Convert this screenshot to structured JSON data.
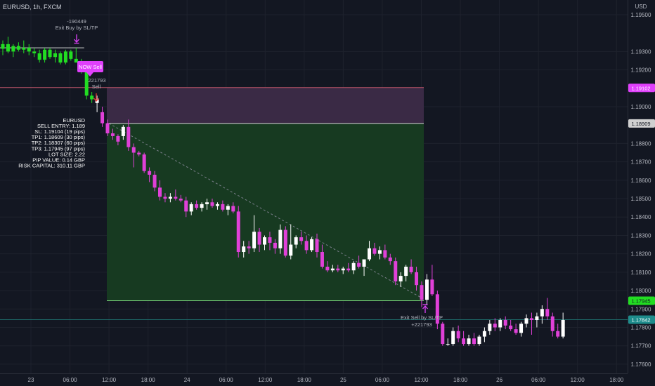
{
  "header": {
    "symbol_title": "EURUSD, 1h, FXCM",
    "currency": "USD"
  },
  "colors": {
    "background": "#131722",
    "grid": "#1e222d",
    "up": "#ffffff",
    "down": "#e040d8",
    "early_up": "#22dd22",
    "sl_zone": "#3a2a45",
    "tp_zone": "#173a21",
    "sl_line": "#c0566b",
    "entry_line": "#d8d8d8",
    "tp_line": "#7bd67b",
    "last_line": "#1e6b6b",
    "magenta": "#e040fb"
  },
  "chart_data": {
    "type": "candlestick",
    "symbol": "EURUSD",
    "timeframe": "1h",
    "source": "FXCM",
    "ylim": [
      1.1755,
      1.1958
    ],
    "y_ticks": [
      "1.19500",
      "1.19300",
      "1.19200",
      "1.19000",
      "1.18800",
      "1.18700",
      "1.18600",
      "1.18500",
      "1.18400",
      "1.18300",
      "1.18200",
      "1.18100",
      "1.18000",
      "1.17900",
      "1.17800",
      "1.17700",
      "1.17600"
    ],
    "x_ticks": [
      "23",
      "06:00",
      "12:00",
      "18:00",
      "24",
      "06:00",
      "12:00",
      "18:00",
      "25",
      "06:00",
      "12:00",
      "18:00",
      "26",
      "06:00",
      "12:00",
      "18:00"
    ],
    "candles": [
      {
        "o": 1.19315,
        "h": 1.1936,
        "l": 1.1928,
        "c": 1.1934,
        "g": 1
      },
      {
        "o": 1.1934,
        "h": 1.1938,
        "l": 1.1929,
        "c": 1.193,
        "g": 1
      },
      {
        "o": 1.193,
        "h": 1.1934,
        "l": 1.1927,
        "c": 1.1933,
        "g": 1
      },
      {
        "o": 1.1933,
        "h": 1.1935,
        "l": 1.193,
        "c": 1.1931,
        "g": 1
      },
      {
        "o": 1.1931,
        "h": 1.1936,
        "l": 1.1929,
        "c": 1.1932,
        "g": 1
      },
      {
        "o": 1.1932,
        "h": 1.1934,
        "l": 1.1928,
        "c": 1.193,
        "g": 1
      },
      {
        "o": 1.193,
        "h": 1.1932,
        "l": 1.1927,
        "c": 1.1929,
        "g": 1
      },
      {
        "o": 1.1929,
        "h": 1.1931,
        "l": 1.1924,
        "c": 1.19255,
        "g": 1
      },
      {
        "o": 1.19255,
        "h": 1.1932,
        "l": 1.1924,
        "c": 1.1931,
        "g": 1
      },
      {
        "o": 1.1931,
        "h": 1.1932,
        "l": 1.1926,
        "c": 1.1927,
        "g": 1
      },
      {
        "o": 1.1927,
        "h": 1.1931,
        "l": 1.1924,
        "c": 1.1929,
        "g": 1
      },
      {
        "o": 1.1929,
        "h": 1.193,
        "l": 1.1923,
        "c": 1.1924,
        "g": 1
      },
      {
        "o": 1.1924,
        "h": 1.1931,
        "l": 1.1923,
        "c": 1.193,
        "g": 1
      },
      {
        "o": 1.193,
        "h": 1.1931,
        "l": 1.1925,
        "c": 1.1926,
        "g": 1
      },
      {
        "o": 1.1926,
        "h": 1.1932,
        "l": 1.1924,
        "c": 1.1924,
        "g": 1
      },
      {
        "o": 1.1923,
        "h": 1.1926,
        "l": 1.1918,
        "c": 1.192,
        "g": 1
      },
      {
        "o": 1.192,
        "h": 1.1922,
        "l": 1.1904,
        "c": 1.1906,
        "g": 1
      },
      {
        "o": 1.1906,
        "h": 1.1908,
        "l": 1.1902,
        "c": 1.1904,
        "g": 1
      },
      {
        "o": 1.1902,
        "h": 1.1906,
        "l": 1.1897,
        "c": 1.1904
      },
      {
        "o": 1.1897,
        "h": 1.19,
        "l": 1.1889,
        "c": 1.1891
      },
      {
        "o": 1.1891,
        "h": 1.1893,
        "l": 1.1884,
        "c": 1.18855
      },
      {
        "o": 1.18855,
        "h": 1.1888,
        "l": 1.1882,
        "c": 1.1884
      },
      {
        "o": 1.1884,
        "h": 1.1885,
        "l": 1.1879,
        "c": 1.1881
      },
      {
        "o": 1.1884,
        "h": 1.189,
        "l": 1.1882,
        "c": 1.1889
      },
      {
        "o": 1.1889,
        "h": 1.1893,
        "l": 1.1876,
        "c": 1.1878
      },
      {
        "o": 1.1878,
        "h": 1.188,
        "l": 1.1867,
        "c": 1.1875
      },
      {
        "o": 1.1875,
        "h": 1.1876,
        "l": 1.1873,
        "c": 1.1874
      },
      {
        "o": 1.1874,
        "h": 1.1875,
        "l": 1.1864,
        "c": 1.1865
      },
      {
        "o": 1.1865,
        "h": 1.1867,
        "l": 1.1859,
        "c": 1.1863
      },
      {
        "o": 1.1863,
        "h": 1.1865,
        "l": 1.1854,
        "c": 1.1856
      },
      {
        "o": 1.1856,
        "h": 1.186,
        "l": 1.1849,
        "c": 1.1851
      },
      {
        "o": 1.1851,
        "h": 1.1853,
        "l": 1.1848,
        "c": 1.185
      },
      {
        "o": 1.185,
        "h": 1.1853,
        "l": 1.1848,
        "c": 1.1851
      },
      {
        "o": 1.1851,
        "h": 1.1855,
        "l": 1.1849,
        "c": 1.185
      },
      {
        "o": 1.185,
        "h": 1.1852,
        "l": 1.1848,
        "c": 1.1849
      },
      {
        "o": 1.1849,
        "h": 1.1851,
        "l": 1.184,
        "c": 1.1843
      },
      {
        "o": 1.1843,
        "h": 1.1848,
        "l": 1.1841,
        "c": 1.1847
      },
      {
        "o": 1.1847,
        "h": 1.1849,
        "l": 1.1844,
        "c": 1.1845
      },
      {
        "o": 1.1845,
        "h": 1.1848,
        "l": 1.1843,
        "c": 1.1847
      },
      {
        "o": 1.1847,
        "h": 1.185,
        "l": 1.1844,
        "c": 1.1848
      },
      {
        "o": 1.1848,
        "h": 1.185,
        "l": 1.1845,
        "c": 1.1846
      },
      {
        "o": 1.1846,
        "h": 1.1848,
        "l": 1.1844,
        "c": 1.1847
      },
      {
        "o": 1.1847,
        "h": 1.1849,
        "l": 1.1843,
        "c": 1.1844
      },
      {
        "o": 1.1844,
        "h": 1.1847,
        "l": 1.1841,
        "c": 1.1846
      },
      {
        "o": 1.1846,
        "h": 1.1848,
        "l": 1.1842,
        "c": 1.1843
      },
      {
        "o": 1.1843,
        "h": 1.1846,
        "l": 1.1818,
        "c": 1.1821
      },
      {
        "o": 1.1821,
        "h": 1.1827,
        "l": 1.1818,
        "c": 1.1824
      },
      {
        "o": 1.1824,
        "h": 1.1827,
        "l": 1.182,
        "c": 1.1823
      },
      {
        "o": 1.1823,
        "h": 1.1841,
        "l": 1.1821,
        "c": 1.1832
      },
      {
        "o": 1.1832,
        "h": 1.1834,
        "l": 1.1821,
        "c": 1.1825
      },
      {
        "o": 1.1825,
        "h": 1.183,
        "l": 1.1822,
        "c": 1.1829
      },
      {
        "o": 1.1829,
        "h": 1.1832,
        "l": 1.1822,
        "c": 1.1826
      },
      {
        "o": 1.1826,
        "h": 1.1828,
        "l": 1.182,
        "c": 1.1823
      },
      {
        "o": 1.1823,
        "h": 1.1836,
        "l": 1.182,
        "c": 1.1833
      },
      {
        "o": 1.1833,
        "h": 1.1835,
        "l": 1.1818,
        "c": 1.1819
      },
      {
        "o": 1.1819,
        "h": 1.1836,
        "l": 1.1817,
        "c": 1.1825
      },
      {
        "o": 1.1825,
        "h": 1.183,
        "l": 1.1823,
        "c": 1.1829
      },
      {
        "o": 1.1829,
        "h": 1.1832,
        "l": 1.1825,
        "c": 1.1827
      },
      {
        "o": 1.1827,
        "h": 1.183,
        "l": 1.182,
        "c": 1.1822
      },
      {
        "o": 1.1822,
        "h": 1.1829,
        "l": 1.1821,
        "c": 1.1828
      },
      {
        "o": 1.1828,
        "h": 1.1831,
        "l": 1.1818,
        "c": 1.1821
      },
      {
        "o": 1.1821,
        "h": 1.1825,
        "l": 1.1812,
        "c": 1.1813
      },
      {
        "o": 1.1813,
        "h": 1.1816,
        "l": 1.181,
        "c": 1.1811
      },
      {
        "o": 1.1811,
        "h": 1.1814,
        "l": 1.181,
        "c": 1.1812
      },
      {
        "o": 1.1812,
        "h": 1.1814,
        "l": 1.181,
        "c": 1.1811
      },
      {
        "o": 1.1811,
        "h": 1.1813,
        "l": 1.1809,
        "c": 1.1812
      },
      {
        "o": 1.1812,
        "h": 1.1815,
        "l": 1.181,
        "c": 1.1811
      },
      {
        "o": 1.1811,
        "h": 1.1816,
        "l": 1.1809,
        "c": 1.1815
      },
      {
        "o": 1.1815,
        "h": 1.1819,
        "l": 1.1812,
        "c": 1.1813
      },
      {
        "o": 1.1813,
        "h": 1.1817,
        "l": 1.1808,
        "c": 1.1817
      },
      {
        "o": 1.1817,
        "h": 1.1827,
        "l": 1.1816,
        "c": 1.1823
      },
      {
        "o": 1.1823,
        "h": 1.1826,
        "l": 1.1819,
        "c": 1.182
      },
      {
        "o": 1.182,
        "h": 1.1824,
        "l": 1.1817,
        "c": 1.1822
      },
      {
        "o": 1.1822,
        "h": 1.1825,
        "l": 1.1817,
        "c": 1.1818
      },
      {
        "o": 1.1818,
        "h": 1.182,
        "l": 1.1814,
        "c": 1.1816
      },
      {
        "o": 1.1816,
        "h": 1.1818,
        "l": 1.1803,
        "c": 1.1805
      },
      {
        "o": 1.1805,
        "h": 1.181,
        "l": 1.1802,
        "c": 1.1808
      },
      {
        "o": 1.1808,
        "h": 1.1814,
        "l": 1.1805,
        "c": 1.1813
      },
      {
        "o": 1.1813,
        "h": 1.1817,
        "l": 1.1809,
        "c": 1.181
      },
      {
        "o": 1.181,
        "h": 1.1813,
        "l": 1.18,
        "c": 1.1803
      },
      {
        "o": 1.1803,
        "h": 1.1805,
        "l": 1.1791,
        "c": 1.1795
      },
      {
        "o": 1.1795,
        "h": 1.1809,
        "l": 1.1792,
        "c": 1.1806
      },
      {
        "o": 1.1806,
        "h": 1.1814,
        "l": 1.1797,
        "c": 1.1798
      },
      {
        "o": 1.1798,
        "h": 1.18,
        "l": 1.1779,
        "c": 1.1782
      },
      {
        "o": 1.1782,
        "h": 1.1783,
        "l": 1.177,
        "c": 1.1771
      },
      {
        "o": 1.1771,
        "h": 1.1774,
        "l": 1.177,
        "c": 1.1771
      },
      {
        "o": 1.1771,
        "h": 1.178,
        "l": 1.177,
        "c": 1.1778
      },
      {
        "o": 1.1778,
        "h": 1.1781,
        "l": 1.1772,
        "c": 1.1774
      },
      {
        "o": 1.1774,
        "h": 1.1778,
        "l": 1.177,
        "c": 1.1771
      },
      {
        "o": 1.1771,
        "h": 1.1776,
        "l": 1.177,
        "c": 1.1774
      },
      {
        "o": 1.1774,
        "h": 1.1777,
        "l": 1.177,
        "c": 1.1771
      },
      {
        "o": 1.1771,
        "h": 1.1776,
        "l": 1.177,
        "c": 1.1775
      },
      {
        "o": 1.1775,
        "h": 1.178,
        "l": 1.1772,
        "c": 1.1778
      },
      {
        "o": 1.1778,
        "h": 1.1784,
        "l": 1.1776,
        "c": 1.1782
      },
      {
        "o": 1.1782,
        "h": 1.1785,
        "l": 1.1778,
        "c": 1.178
      },
      {
        "o": 1.178,
        "h": 1.1785,
        "l": 1.1778,
        "c": 1.1784
      },
      {
        "o": 1.1784,
        "h": 1.1786,
        "l": 1.1779,
        "c": 1.1781
      },
      {
        "o": 1.1781,
        "h": 1.1784,
        "l": 1.1778,
        "c": 1.1779
      },
      {
        "o": 1.1779,
        "h": 1.1782,
        "l": 1.1776,
        "c": 1.1777
      },
      {
        "o": 1.1777,
        "h": 1.1783,
        "l": 1.1775,
        "c": 1.1782
      },
      {
        "o": 1.1782,
        "h": 1.1787,
        "l": 1.178,
        "c": 1.1785
      },
      {
        "o": 1.1785,
        "h": 1.1788,
        "l": 1.1776,
        "c": 1.1784
      },
      {
        "o": 1.1784,
        "h": 1.1788,
        "l": 1.178,
        "c": 1.1786
      },
      {
        "o": 1.1786,
        "h": 1.1792,
        "l": 1.1782,
        "c": 1.179
      },
      {
        "o": 1.179,
        "h": 1.1796,
        "l": 1.1784,
        "c": 1.1786
      },
      {
        "o": 1.1786,
        "h": 1.1788,
        "l": 1.1775,
        "c": 1.1778
      },
      {
        "o": 1.1778,
        "h": 1.1782,
        "l": 1.1774,
        "c": 1.1775
      },
      {
        "o": 1.1775,
        "h": 1.1788,
        "l": 1.1774,
        "c": 1.1784
      }
    ],
    "position": {
      "direction": "sell",
      "sl": 1.19104,
      "entry": 1.18909,
      "tp3": 1.17945,
      "start_index": 20,
      "end_index": 80
    },
    "price_tags": [
      {
        "label": "1.19102",
        "value": 1.19102,
        "bg": "#e040fb",
        "fg": "#ffffff"
      },
      {
        "label": "1.18909",
        "value": 1.18909,
        "bg": "#d0d0d0",
        "fg": "#131722"
      },
      {
        "label": "1.17945",
        "value": 1.17945,
        "bg": "#22dd22",
        "fg": "#131722"
      },
      {
        "label": "1.17842",
        "value": 1.17842,
        "bg": "#1e8c8c",
        "fg": "#ffffff"
      }
    ],
    "last_price": 1.17842
  },
  "info_box": [
    "EURUSD",
    "SELL ENTRY: 1.189",
    "SL: 1.19104 (19 pips)",
    "TP1: 1.18609 (30 pips)",
    "TP2: 1.18307 (60 pips)",
    "TP3: 1.17945 (97 pips)",
    "LOT SIZE: 2.22",
    "PIP VALUE: 0.14 GBP",
    "RISK CAPITAL: 310.11 GBP"
  ],
  "annotations": {
    "exit_buy_value": "-190449",
    "exit_buy_label": "Exit Buy by SL/TP",
    "now_sell_label": "NOW Sell",
    "sell_value": "221793",
    "sell_label": "Sell",
    "exit_sell_label": "Exit Sell by SL/TP",
    "exit_sell_value": "+221793"
  }
}
